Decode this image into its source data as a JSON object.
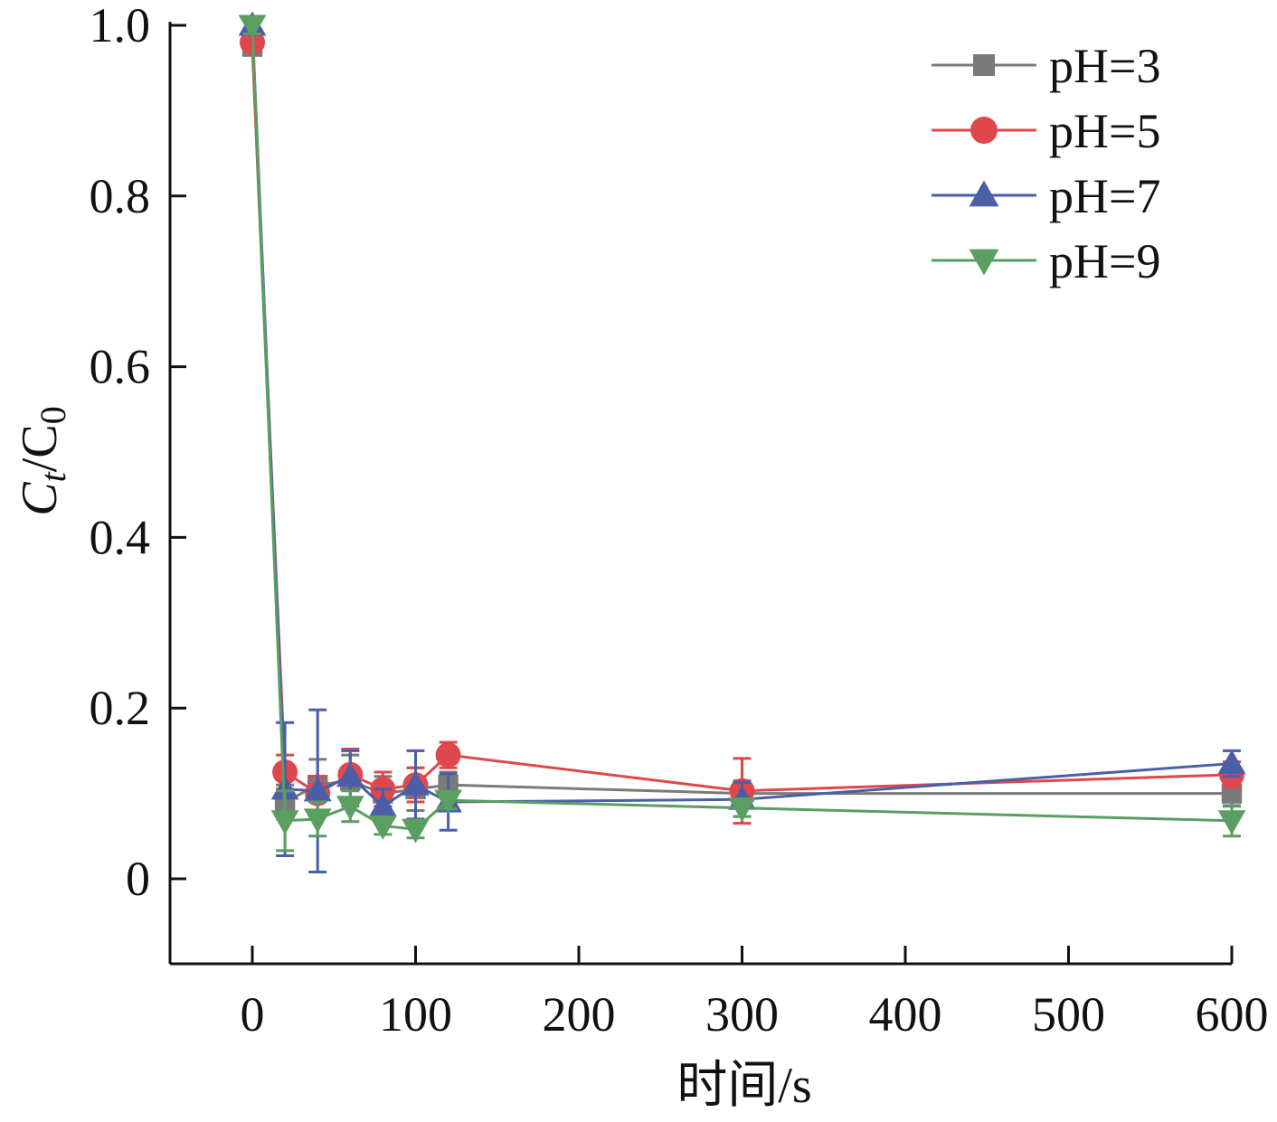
{
  "chart_data": {
    "type": "line",
    "title": "",
    "xlabel": "时间/s",
    "ylabel": "Ct/C0",
    "ylabel_parts": {
      "c1": "C",
      "sub1": "t",
      "slash": "/C",
      "sub2": "0"
    },
    "x_ticks": [
      0,
      100,
      200,
      300,
      400,
      500,
      600
    ],
    "y_ticks": [
      0,
      0.2,
      0.4,
      0.6,
      0.8,
      1.0
    ],
    "y_tick_labels": [
      "0",
      "0.2",
      "0.4",
      "0.6",
      "0.8",
      "1.0"
    ],
    "xlim": [
      -50,
      600
    ],
    "ylim": [
      -0.1,
      1.0
    ],
    "grid": false,
    "legend_position": "top-right",
    "series": [
      {
        "name": "pH=3",
        "color": "#7a7a7a",
        "marker": "square",
        "x": [
          0,
          20,
          40,
          60,
          80,
          100,
          120,
          300,
          600
        ],
        "y": [
          0.975,
          0.09,
          0.11,
          0.115,
          0.1,
          0.105,
          0.11,
          0.1,
          0.1
        ],
        "err": [
          0.01,
          0.02,
          0.03,
          0.03,
          0.02,
          0.025,
          0.015,
          0.015,
          0.015
        ]
      },
      {
        "name": "pH=5",
        "color": "#e0474c",
        "marker": "circle",
        "x": [
          0,
          20,
          40,
          60,
          80,
          100,
          120,
          300,
          600
        ],
        "y": [
          0.98,
          0.125,
          0.1,
          0.122,
          0.105,
          0.11,
          0.145,
          0.103,
          0.122
        ],
        "err": [
          0.01,
          0.02,
          0.02,
          0.03,
          0.02,
          0.02,
          0.015,
          0.038,
          0.015
        ]
      },
      {
        "name": "pH=7",
        "color": "#4a5fa8",
        "marker": "triangle-up",
        "x": [
          0,
          20,
          40,
          60,
          80,
          100,
          120,
          300,
          600
        ],
        "y": [
          1.0,
          0.105,
          0.103,
          0.12,
          0.085,
          0.11,
          0.09,
          0.093,
          0.135
        ],
        "err": [
          0.01,
          0.078,
          0.095,
          0.03,
          0.02,
          0.04,
          0.033,
          0.02,
          0.015
        ]
      },
      {
        "name": "pH=9",
        "color": "#5a9e62",
        "marker": "triangle-down",
        "x": [
          0,
          20,
          40,
          60,
          80,
          100,
          120,
          300,
          600
        ],
        "y": [
          1.0,
          0.068,
          0.07,
          0.085,
          0.062,
          0.058,
          0.092,
          0.083,
          0.068
        ],
        "err": [
          0.01,
          0.035,
          0.02,
          0.018,
          0.01,
          0.01,
          0.01,
          0.01,
          0.018
        ]
      }
    ]
  }
}
